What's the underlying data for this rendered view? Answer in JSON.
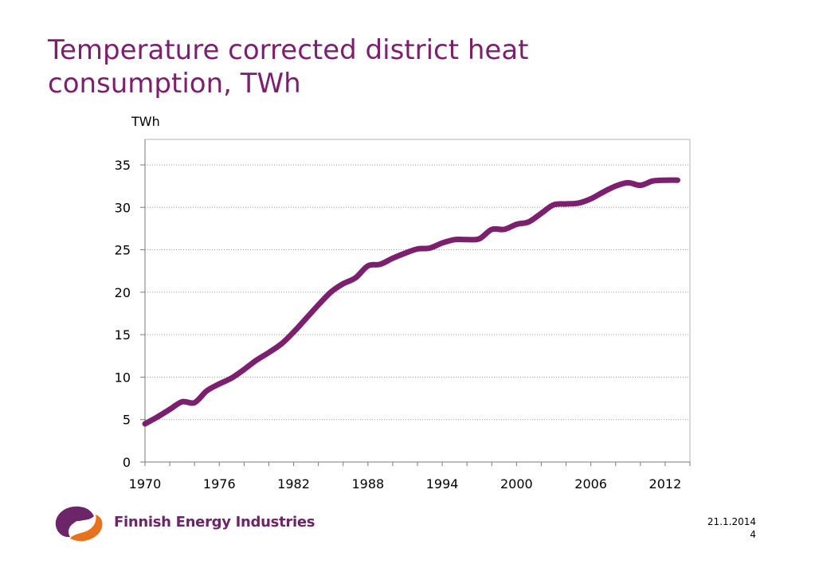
{
  "title_lines": [
    "Temperature corrected district heat",
    "consumption, TWh"
  ],
  "footer": {
    "date": "21.1.2014",
    "page": "4"
  },
  "logo": {
    "text": "Finnish Energy Industries",
    "colors": {
      "purple": "#6b2568",
      "orange": "#e8711c"
    }
  },
  "colors": {
    "title": "#7b1f6e",
    "line": "#7b1f6e",
    "grid": "#9a9a9a"
  },
  "chart_data": {
    "type": "line",
    "title": "",
    "xlabel": "",
    "ylabel": "TWh",
    "xlim": [
      1970,
      2014
    ],
    "ylim": [
      0,
      38
    ],
    "x_ticks": [
      1970,
      1976,
      1982,
      1988,
      1994,
      2000,
      2006,
      2012
    ],
    "y_ticks": [
      0,
      5,
      10,
      15,
      20,
      25,
      30,
      35
    ],
    "grid": "horizontal dotted",
    "legend": "none",
    "series": [
      {
        "x": [
          1970,
          1971,
          1972,
          1973,
          1974,
          1975,
          1976,
          1977,
          1978,
          1979,
          1980,
          1981,
          1982,
          1983,
          1984,
          1985,
          1986,
          1987,
          1988,
          1989,
          1990,
          1991,
          1992,
          1993,
          1994,
          1995,
          1996,
          1997,
          1998,
          1999,
          2000,
          2001,
          2002,
          2003,
          2004,
          2005,
          2006,
          2007,
          2008,
          2009,
          2010,
          2011,
          2012,
          2013
        ],
        "values": [
          4.5,
          5.3,
          6.2,
          7.1,
          7.0,
          8.4,
          9.2,
          9.9,
          10.9,
          12.0,
          12.9,
          13.9,
          15.3,
          16.9,
          18.5,
          20.0,
          21.0,
          21.7,
          23.1,
          23.3,
          24.0,
          24.6,
          25.1,
          25.2,
          25.8,
          26.2,
          26.2,
          26.3,
          27.4,
          27.4,
          28.0,
          28.3,
          29.3,
          30.3,
          30.4,
          30.5,
          31.0,
          31.8,
          32.5,
          32.9,
          32.6,
          33.1,
          33.2,
          33.2
        ]
      }
    ]
  }
}
